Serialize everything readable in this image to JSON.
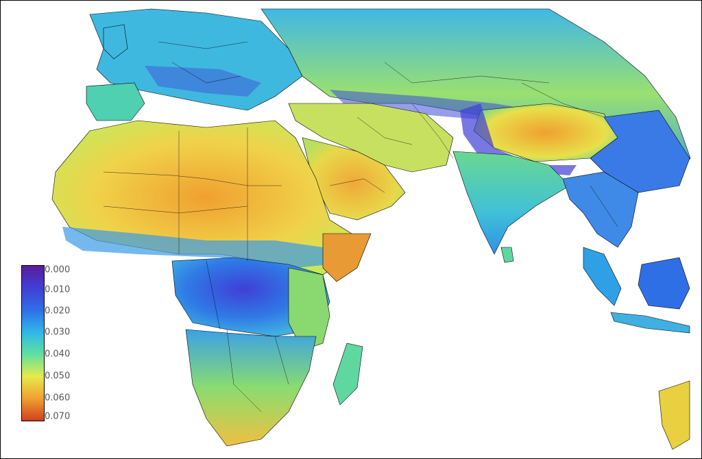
{
  "colorbar": {
    "ticks": [
      "0.000",
      "0.010",
      "0.020",
      "0.030",
      "0.040",
      "0.050",
      "0.060",
      "0.070"
    ],
    "colors": [
      "#5a1c9a",
      "#3f3fd6",
      "#2f6fe6",
      "#2fb8e8",
      "#5fe0a0",
      "#e6ea4a",
      "#f0a030",
      "#d04020"
    ]
  },
  "map": {
    "land_base_color": "#4fd0c8",
    "ocean_color": "#ffffff",
    "border_color": "#000000"
  }
}
